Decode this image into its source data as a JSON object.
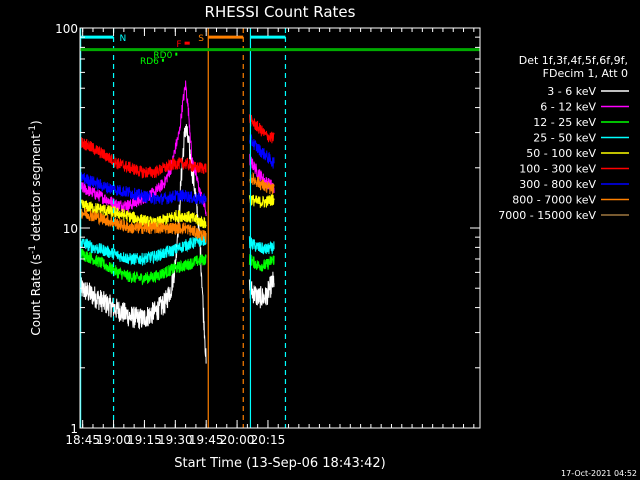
{
  "chart_data": {
    "type": "line",
    "title": "RHESSI Count Rates",
    "xlabel": "Start Time (13-Sep-06 18:43:42)",
    "ylabel": "Count Rate (s",
    "ylabel_sup1": "-1",
    "ylabel_mid": " detector segment",
    "ylabel_sup2": "-1",
    "ylabel_end": ")",
    "y_scale": "log",
    "ylim": [
      1,
      100
    ],
    "xlim_min": [
      1123.7,
      1318
    ],
    "x_ticks": [
      {
        "min": 1125,
        "label": "18:45"
      },
      {
        "min": 1140,
        "label": "19:00"
      },
      {
        "min": 1155,
        "label": "19:15"
      },
      {
        "min": 1170,
        "label": "19:30"
      },
      {
        "min": 1185,
        "label": "19:45"
      },
      {
        "min": 1200,
        "label": "20:00"
      },
      {
        "min": 1215,
        "label": "20:15"
      }
    ],
    "y_ticks": [
      {
        "value": 1,
        "label": "1"
      },
      {
        "value": 10,
        "label": "10"
      },
      {
        "value": 100,
        "label": "100"
      }
    ],
    "legend_header": [
      "Det 1f,3f,4f,5f,6f,9f,",
      "FDecim 1, Att 0"
    ],
    "series": [
      {
        "name": "3 - 6 keV",
        "color": "#ffffff",
        "x": [
          1124,
          1130,
          1136,
          1142,
          1148,
          1154,
          1160,
          1165,
          1168,
          1170,
          1172,
          1175,
          1178,
          1182,
          1183.5,
          1185
        ],
        "y": [
          5.0,
          4.6,
          4.2,
          3.9,
          3.6,
          3.5,
          3.8,
          4.2,
          5.0,
          6.5,
          12,
          32,
          20,
          8,
          4,
          2
        ],
        "x2": [
          1206,
          1210,
          1214,
          1218
        ],
        "y2": [
          5.0,
          4.5,
          4.5,
          5.5
        ]
      },
      {
        "name": "6 - 12 keV",
        "color": "#ff00ff",
        "x": [
          1124,
          1130,
          1136,
          1142,
          1148,
          1154,
          1160,
          1165,
          1168,
          1170,
          1172,
          1175,
          1178,
          1182,
          1185
        ],
        "y": [
          16,
          15,
          14,
          13,
          13,
          14,
          15,
          17,
          20,
          25,
          30,
          52,
          22,
          15,
          12
        ],
        "x2": [
          1206,
          1210,
          1214,
          1218
        ],
        "y2": [
          22,
          19,
          17,
          16
        ]
      },
      {
        "name": "12 - 25 keV",
        "color": "#00ff00",
        "x": [
          1124,
          1130,
          1136,
          1142,
          1148,
          1154,
          1160,
          1165,
          1170,
          1175,
          1180,
          1185
        ],
        "y": [
          7.5,
          7.0,
          6.5,
          6.0,
          5.7,
          5.6,
          5.7,
          6.0,
          6.3,
          6.5,
          6.8,
          7.0
        ],
        "x2": [
          1206,
          1210,
          1214,
          1218
        ],
        "y2": [
          7.0,
          6.5,
          6.5,
          7.0
        ]
      },
      {
        "name": "25 - 50 keV",
        "color": "#00ffff",
        "x": [
          1124,
          1130,
          1136,
          1142,
          1148,
          1154,
          1160,
          1165,
          1170,
          1175,
          1180,
          1185
        ],
        "y": [
          8.5,
          8.0,
          7.7,
          7.3,
          7.0,
          7.0,
          7.2,
          7.5,
          7.8,
          8.2,
          8.5,
          8.8
        ],
        "x2": [
          1206,
          1210,
          1214,
          1218
        ],
        "y2": [
          8.5,
          8.0,
          7.8,
          8.0
        ]
      },
      {
        "name": "50 - 100 keV",
        "color": "#ffff00",
        "x": [
          1124,
          1140,
          1160,
          1165,
          1170,
          1175,
          1180,
          1185
        ],
        "y": [
          13,
          12,
          10.5,
          11,
          11.5,
          11.5,
          11,
          10.5
        ],
        "x2": [
          1206,
          1210,
          1214,
          1218
        ],
        "y2": [
          14,
          13.5,
          13.5,
          14
        ]
      },
      {
        "name": "100 - 300 keV",
        "color": "#ff0000",
        "x": [
          1124,
          1130,
          1136,
          1142,
          1148,
          1154,
          1160,
          1165,
          1170,
          1175,
          1180,
          1185
        ],
        "y": [
          27,
          25,
          23,
          21,
          20,
          19,
          19,
          20,
          21,
          21,
          20,
          20
        ],
        "x2": [
          1206,
          1210,
          1214,
          1218
        ],
        "y2": [
          35,
          32,
          29,
          28
        ]
      },
      {
        "name": "300 - 800 keV",
        "color": "#0000ff",
        "x": [
          1124,
          1130,
          1136,
          1142,
          1148,
          1154,
          1160,
          1165,
          1170,
          1175,
          1180,
          1185
        ],
        "y": [
          18,
          17,
          16,
          15.5,
          15,
          14.5,
          14,
          14,
          14.5,
          14.5,
          14,
          14
        ],
        "x2": [
          1206,
          1210,
          1214,
          1218
        ],
        "y2": [
          28,
          25,
          23,
          21
        ]
      },
      {
        "name": "800 - 7000 keV",
        "color": "#ff8000",
        "x": [
          1124,
          1130,
          1136,
          1142,
          1148,
          1154,
          1160,
          1165,
          1170,
          1175,
          1180,
          1185
        ],
        "y": [
          12,
          11.5,
          11,
          10.5,
          10,
          10,
          10,
          10,
          10,
          10,
          9.5,
          9
        ],
        "x2": [
          1206,
          1210,
          1214,
          1218
        ],
        "y2": [
          18,
          17,
          16,
          15.5
        ]
      },
      {
        "name": "7000 - 15000 keV",
        "color": "#a07840",
        "x": [],
        "y": [],
        "x2": [],
        "y2": []
      }
    ],
    "annotations": {
      "intervals": [
        {
          "label": "N",
          "start": 1124.0,
          "end": 1140.0,
          "color": "#00ffff"
        },
        {
          "label": "S",
          "start": 1186.0,
          "end": 1203.0,
          "color": "#ff8000"
        },
        {
          "label": "",
          "start": 1206.5,
          "end": 1223.5,
          "color": "#00ffff"
        }
      ],
      "markers": [
        {
          "label": "F",
          "min": 1174.5,
          "max": 1177.0,
          "y": 84,
          "color": "#ff0000"
        },
        {
          "label": "RD0",
          "min": 1170.0,
          "max": 1170.0,
          "y": 74,
          "color": "#00ff00"
        },
        {
          "label": "RD6",
          "min": 1163.5,
          "max": 1163.5,
          "y": 69,
          "color": "#00ff00"
        }
      ],
      "green_band": {
        "start": 1123.7,
        "end": 1318.0,
        "y": 78,
        "color": "#00aa00"
      }
    },
    "timestamp": "17-Oct-2021 04:52"
  }
}
